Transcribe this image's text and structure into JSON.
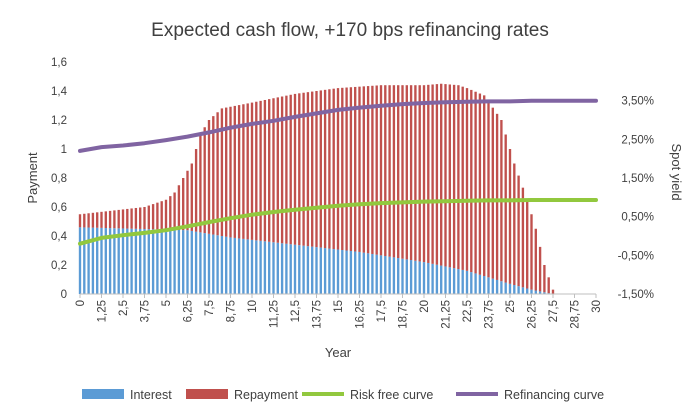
{
  "chart_data": {
    "type": "bar",
    "title": "Expected cash flow, +170 bps refinancing rates",
    "xlabel": "Year",
    "ylabel": "Payment",
    "y2label": "Spot yield",
    "ylim": [
      0,
      1.6
    ],
    "y2lim": [
      -1.5,
      4.5
    ],
    "xlim": [
      0,
      30
    ],
    "x_tick_labels": [
      "0",
      "1,25",
      "2,5",
      "3,75",
      "5",
      "6,25",
      "7,5",
      "8,75",
      "10",
      "11,25",
      "12,5",
      "13,75",
      "15",
      "16,25",
      "17,5",
      "18,75",
      "20",
      "21,25",
      "22,5",
      "23,75",
      "25",
      "26,25",
      "27,5",
      "28,75",
      "30"
    ],
    "y_tick_labels": [
      "0",
      "0,2",
      "0,4",
      "0,6",
      "0,8",
      "1",
      "1,2",
      "1,4",
      "1,6"
    ],
    "y2_tick_labels": [
      "-1,50%",
      "-0,50%",
      "0,50%",
      "1,50%",
      "2,50%",
      "3,50%"
    ],
    "grid": false,
    "legend_position": "bottom",
    "legend": [
      "Interest",
      "Repayment",
      "Risk free curve",
      "Refinancing curve"
    ],
    "colors": {
      "interest": "#5b9bd5",
      "repayment": "#c0504d",
      "risk_free": "#92c83e",
      "refinancing": "#8064a2",
      "axis": "#bfbfbf",
      "text": "#404040"
    },
    "bar_step_years": 0.25,
    "interest_segments": [
      [
        0,
        0.46
      ],
      [
        6.25,
        0.44
      ],
      [
        8.75,
        0.39
      ],
      [
        12.5,
        0.34
      ],
      [
        16.25,
        0.29
      ],
      [
        20,
        0.22
      ],
      [
        22.5,
        0.16
      ],
      [
        25,
        0.07
      ],
      [
        26.25,
        0.03
      ],
      [
        27.5,
        0
      ]
    ],
    "total_segments": [
      [
        0,
        0.55
      ],
      [
        3.75,
        0.6
      ],
      [
        5,
        0.65
      ],
      [
        5.5,
        0.7
      ],
      [
        6,
        0.8
      ],
      [
        6.5,
        0.9
      ],
      [
        7,
        1.1
      ],
      [
        7.5,
        1.2
      ],
      [
        8.25,
        1.28
      ],
      [
        10,
        1.32
      ],
      [
        12.5,
        1.38
      ],
      [
        15,
        1.42
      ],
      [
        17.5,
        1.44
      ],
      [
        20,
        1.44
      ],
      [
        21,
        1.45
      ],
      [
        22,
        1.44
      ],
      [
        22.5,
        1.42
      ],
      [
        23.5,
        1.37
      ],
      [
        24.5,
        1.2
      ],
      [
        25.25,
        0.9
      ],
      [
        26,
        0.65
      ],
      [
        26.5,
        0.45
      ],
      [
        27,
        0.2
      ],
      [
        27.5,
        0.03
      ],
      [
        27.75,
        0
      ]
    ],
    "risk_free_curve": {
      "x": [
        0,
        1.25,
        2.5,
        3.75,
        5,
        6.25,
        7.5,
        8.75,
        10,
        11.25,
        12.5,
        13.75,
        15,
        16.25,
        17.5,
        18.75,
        20,
        21.25,
        22.5,
        23.75,
        25,
        26.25,
        27.5,
        28.75,
        30
      ],
      "y": [
        -0.2,
        -0.05,
        0.02,
        0.08,
        0.15,
        0.25,
        0.36,
        0.46,
        0.55,
        0.62,
        0.68,
        0.73,
        0.78,
        0.82,
        0.85,
        0.87,
        0.89,
        0.9,
        0.91,
        0.92,
        0.92,
        0.93,
        0.93,
        0.93,
        0.93
      ]
    },
    "refinancing_curve": {
      "x": [
        0,
        1.25,
        2.5,
        3.75,
        5,
        6.25,
        7.5,
        8.75,
        10,
        11.25,
        12.5,
        13.75,
        15,
        16.25,
        17.5,
        18.75,
        20,
        21.25,
        22.5,
        23.75,
        25,
        26.25,
        27.5,
        28.75,
        30
      ],
      "y": [
        2.2,
        2.3,
        2.34,
        2.4,
        2.48,
        2.57,
        2.68,
        2.8,
        2.9,
        2.98,
        3.08,
        3.17,
        3.26,
        3.32,
        3.37,
        3.41,
        3.44,
        3.46,
        3.47,
        3.48,
        3.48,
        3.5,
        3.5,
        3.5,
        3.5
      ]
    }
  }
}
